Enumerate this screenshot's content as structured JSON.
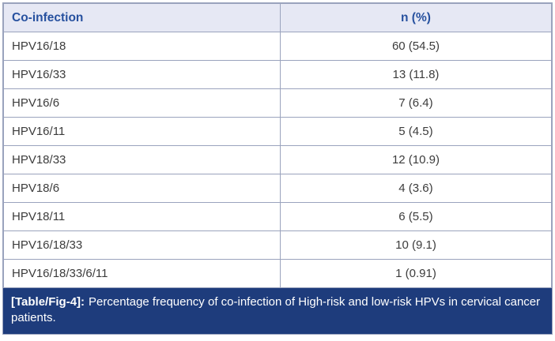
{
  "table": {
    "headers": [
      "Co-infection",
      "n (%)"
    ],
    "rows": [
      [
        "HPV16/18",
        "60 (54.5)"
      ],
      [
        "HPV16/33",
        "13 (11.8)"
      ],
      [
        "HPV16/6",
        "7 (6.4)"
      ],
      [
        "HPV16/11",
        "5 (4.5)"
      ],
      [
        "HPV18/33",
        "12 (10.9)"
      ],
      [
        "HPV18/6",
        "4 (3.6)"
      ],
      [
        "HPV18/11",
        "6 (5.5)"
      ],
      [
        "HPV16/18/33",
        "10 (9.1)"
      ],
      [
        "HPV16/18/33/6/11",
        "1 (0.91)"
      ]
    ]
  },
  "caption": {
    "label": "[Table/Fig-4]:",
    "text": "Percentage frequency of co-infection of High-risk and low-risk HPVs in cervical cancer patients."
  },
  "colors": {
    "header_background": "#e6e8f4",
    "header_text": "#27519f",
    "border": "#9aa3bd",
    "caption_background": "#1e3c7c",
    "caption_text": "#ffffff",
    "body_text": "#3c3c3c"
  },
  "chart_data": {
    "type": "table",
    "title": "[Table/Fig-4]: Percentage frequency of co-infection of High-risk and low-risk HPVs in cervical cancer patients.",
    "columns": [
      "Co-infection",
      "n (%)"
    ],
    "categories": [
      "HPV16/18",
      "HPV16/33",
      "HPV16/6",
      "HPV16/11",
      "HPV18/33",
      "HPV18/6",
      "HPV18/11",
      "HPV16/18/33",
      "HPV16/18/33/6/11"
    ],
    "counts": [
      60,
      13,
      7,
      5,
      12,
      4,
      6,
      10,
      1
    ],
    "percentages": [
      54.5,
      11.8,
      6.4,
      4.5,
      10.9,
      3.6,
      5.5,
      9.1,
      0.91
    ]
  }
}
